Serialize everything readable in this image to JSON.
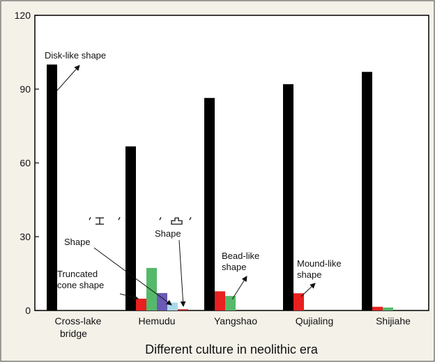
{
  "chart_data": {
    "type": "bar",
    "title": "",
    "xlabel": "Different culture in neolithic era",
    "ylabel": "",
    "ylim": [
      0,
      120
    ],
    "yticks": [
      0,
      30,
      60,
      90,
      120
    ],
    "categories": [
      {
        "line1": "Cross-lake",
        "line2": "bridge"
      },
      {
        "line1": "Hemudu",
        "line2": ""
      },
      {
        "line1": "Yangshao",
        "line2": ""
      },
      {
        "line1": "Qujialing",
        "line2": ""
      },
      {
        "line1": "Shijiahe",
        "line2": ""
      }
    ],
    "series": [
      {
        "label": "Disk-like shape",
        "color": "#000000",
        "values": [
          100,
          66.7,
          86.4,
          92,
          97
        ]
      },
      {
        "label": "Truncated cone shape",
        "color": "#e8201f",
        "values": [
          0,
          4.8,
          7.8,
          7,
          1.5
        ]
      },
      {
        "label": "Bead-like shape",
        "color": "#55b96a",
        "values": [
          0,
          17.3,
          5.9,
          0,
          1.2
        ]
      },
      {
        "label": "Shape I",
        "color": "#6b5ab5",
        "values": [
          0,
          7.1,
          0,
          0,
          0
        ]
      },
      {
        "label": "Shape II",
        "color": "#a9d8ea",
        "values": [
          0,
          3.2,
          0,
          0,
          0
        ]
      },
      {
        "label": "Mound-like shape",
        "color": "#b22a2a",
        "values": [
          0,
          0.5,
          0,
          0,
          0
        ]
      }
    ],
    "grid": false,
    "legend": "none",
    "annotations": {
      "disk": "Disk-like shape",
      "shape_left": "Shape",
      "shape_right": "Shape",
      "truncated_1": "Truncated",
      "truncated_2": "cone shape",
      "bead_1": "Bead-like",
      "bead_2": "shape",
      "mound_1": "Mound-like",
      "mound_2": "shape"
    }
  }
}
